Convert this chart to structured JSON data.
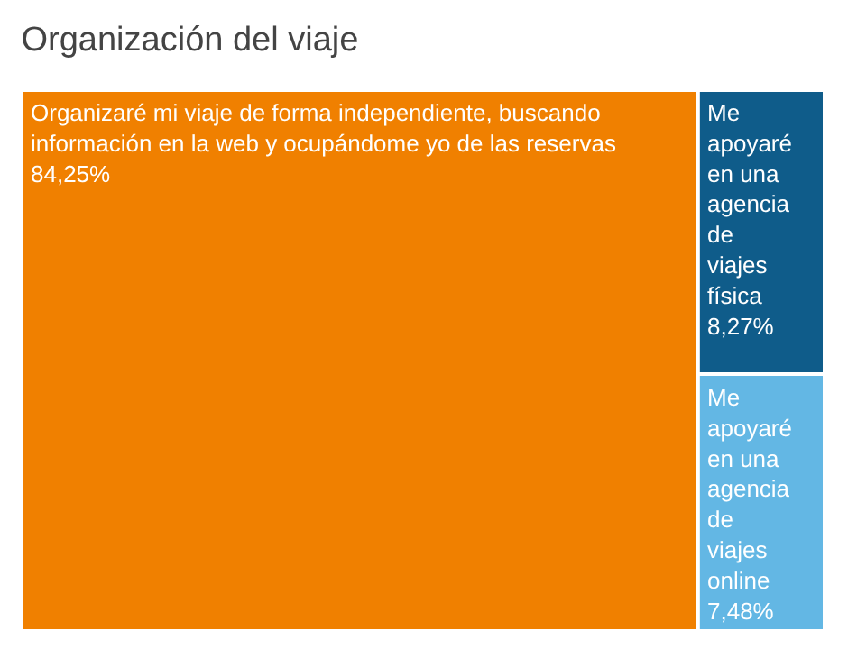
{
  "chart_data": {
    "type": "other",
    "title": "Organización del viaje",
    "categories": [
      "Organizaré mi viaje de forma independiente, buscando información en la web y ocupándome yo de las reservas",
      "Me apoyaré en una agencia de viajes física",
      "Me apoyaré en una agencia de viajes online"
    ],
    "values": [
      84.25,
      8.27,
      7.48
    ],
    "value_labels": [
      "84,25%",
      "8,27%",
      "7,48%"
    ],
    "colors": [
      "#f08000",
      "#0f5c8a",
      "#63b7e4"
    ]
  }
}
